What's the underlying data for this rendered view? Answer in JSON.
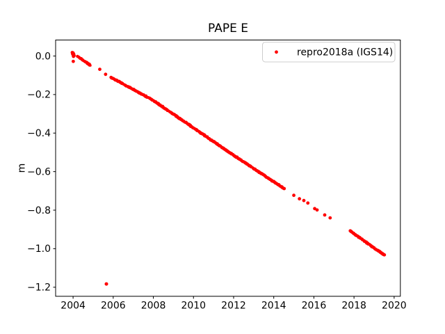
{
  "chart_data": {
    "type": "scatter",
    "title": "PAPE E",
    "xlabel": "",
    "ylabel": "m",
    "grid": false,
    "legend_position": "upper right",
    "xlim": [
      2003.13,
      2020.31
    ],
    "ylim": [
      -1.247,
      0.083
    ],
    "x_ticks": {
      "values": [
        2004,
        2006,
        2008,
        2010,
        2012,
        2014,
        2016,
        2018,
        2020
      ],
      "labels": [
        "2004",
        "2006",
        "2008",
        "2010",
        "2012",
        "2014",
        "2016",
        "2018",
        "2020"
      ]
    },
    "y_ticks": {
      "values": [
        0.0,
        -0.2,
        -0.4,
        -0.6,
        -0.8,
        -1.0,
        -1.2
      ],
      "labels": [
        "0.0",
        "−0.2",
        "−0.4",
        "−0.6",
        "−0.8",
        "−1.0",
        "−1.2"
      ]
    },
    "series": [
      {
        "name": "repro2018a (IGS14)",
        "color": "#ff0000",
        "marker": "dot",
        "dense_segments": [
          {
            "anchors": [
              [
                2004.23,
                -0.002
              ],
              [
                2004.86,
                -0.048
              ]
            ],
            "n": 35
          },
          {
            "anchors": [
              [
                2005.9,
                -0.111
              ],
              [
                2008.0,
                -0.231
              ],
              [
                2011.8,
                -0.501
              ],
              [
                2014.5,
                -0.687
              ]
            ],
            "n": 480
          },
          {
            "anchors": [
              [
                2017.8,
                -0.907
              ],
              [
                2019.5,
                -1.033
              ]
            ],
            "n": 110
          }
        ],
        "points": [
          [
            2003.96,
            0.018
          ],
          [
            2003.98,
            0.01
          ],
          [
            2004.0,
            0.016
          ],
          [
            2004.01,
            0.004
          ],
          [
            2004.03,
            0.01
          ],
          [
            2004.02,
            -0.002
          ],
          [
            2004.05,
            0.002
          ],
          [
            2004.01,
            -0.028
          ],
          [
            2005.33,
            -0.069
          ],
          [
            2005.62,
            -0.095
          ],
          [
            2014.52,
            -0.688
          ],
          [
            2015.0,
            -0.723
          ],
          [
            2015.28,
            -0.741
          ],
          [
            2015.5,
            -0.75
          ],
          [
            2015.7,
            -0.763
          ],
          [
            2016.04,
            -0.792
          ],
          [
            2016.16,
            -0.799
          ],
          [
            2016.54,
            -0.825
          ],
          [
            2016.81,
            -0.84
          ]
        ],
        "outliers": [
          [
            2005.66,
            -1.183
          ]
        ]
      }
    ],
    "colors": {
      "marker": "#ff0000",
      "axis": "#000000",
      "text": "#000000",
      "legend_border": "#cccccc",
      "background": "#ffffff"
    }
  }
}
